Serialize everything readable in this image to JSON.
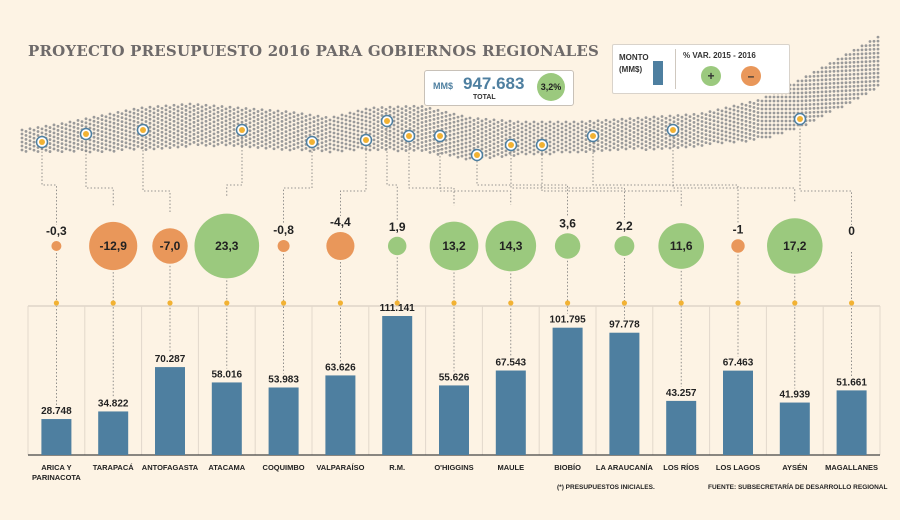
{
  "title": "PROYECTO PRESUPUESTO 2016 PARA GOBIERNOS REGIONALES",
  "legend": {
    "monto_label": "MONTO (MM$)",
    "var_label": "% VAR. 2015 - 2016",
    "plus": "+",
    "minus": "–"
  },
  "total": {
    "unit": "MM$",
    "value": "947.683",
    "label": "TOTAL",
    "variation": "3,2%"
  },
  "colors": {
    "bar": "#4e7fa0",
    "positive": "#9bc97e",
    "negative": "#e9975a",
    "background": "#fdf3e4",
    "map": "#9a9a9a",
    "marker": "#f2b233"
  },
  "chart_data": {
    "type": "bar",
    "title": "PROYECTO PRESUPUESTO 2016 PARA GOBIERNOS REGIONALES",
    "ylabel": "MONTO (MM$)",
    "ylim": [
      0,
      111141
    ],
    "categories": [
      "ARICA Y PARINACOTA",
      "TARAPACÁ",
      "ANTOFAGASTA",
      "ATACAMA",
      "COQUIMBO",
      "VALPARAÍSO",
      "R.M.",
      "O'HIGGINS",
      "MAULE",
      "BIOBÍO",
      "LA ARAUCANÍA",
      "LOS RÍOS",
      "LOS LAGOS",
      "AYSÉN",
      "MAGALLANES"
    ],
    "values": [
      28748,
      34822,
      70287,
      58016,
      53983,
      63626,
      111141,
      55626,
      67543,
      101795,
      97778,
      43257,
      67463,
      41939,
      51661
    ],
    "value_labels": [
      "28.748",
      "34.822",
      "70.287",
      "58.016",
      "53.983",
      "63.626",
      "111.141",
      "55.626",
      "67.543",
      "101.795",
      "97.778",
      "43.257",
      "67.463",
      "41.939",
      "51.661"
    ],
    "variation": [
      -0.3,
      -12.9,
      -7.0,
      23.3,
      -0.8,
      -4.4,
      1.9,
      13.2,
      14.3,
      3.6,
      2.2,
      11.6,
      -1,
      17.2,
      0
    ],
    "variation_labels": [
      "-0,3",
      "-12,9",
      "-7,0",
      "23,3",
      "-0,8",
      "-4,4",
      "1,9",
      "13,2",
      "14,3",
      "3,6",
      "2,2",
      "11,6",
      "-1",
      "17,2",
      "0"
    ]
  },
  "footnote": "(*) PRESUPUESTOS INICIALES.",
  "source": "FUENTE: SUBSECRETARÍA DE DESARROLLO REGIONAL"
}
